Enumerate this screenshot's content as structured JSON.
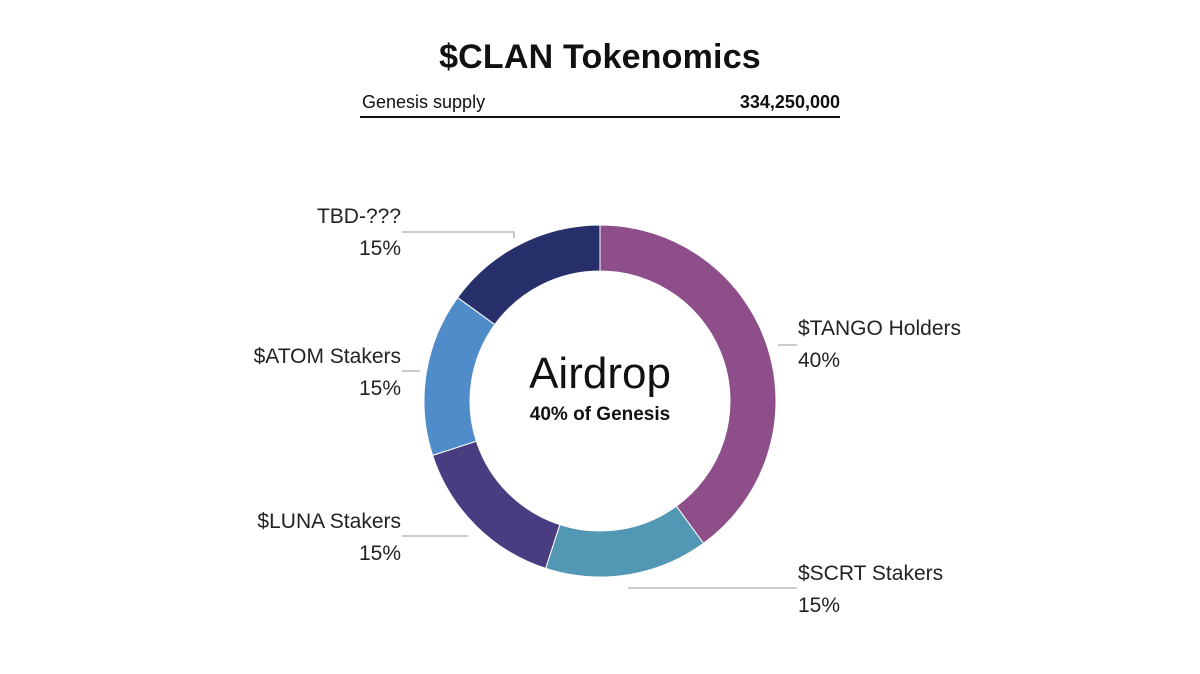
{
  "chart_data": {
    "type": "pie",
    "title": "$CLAN Tokenomics",
    "supply_label": "Genesis supply",
    "supply_value": "334,250,000",
    "center_label": "Airdrop",
    "center_sublabel": "40% of Genesis",
    "slices": [
      {
        "name": "$TANGO Holders",
        "value": 40,
        "label": "40%",
        "color": "#8E4E8A"
      },
      {
        "name": "$SCRT Stakers",
        "value": 15,
        "label": "15%",
        "color": "#5297B4"
      },
      {
        "name": "$LUNA Stakers",
        "value": 15,
        "label": "15%",
        "color": "#4A3C80"
      },
      {
        "name": "$ATOM Stakers",
        "value": 15,
        "label": "15%",
        "color": "#4F8CC9"
      },
      {
        "name": "TBD-???",
        "value": 15,
        "label": "15%",
        "color": "#27306A"
      }
    ]
  }
}
